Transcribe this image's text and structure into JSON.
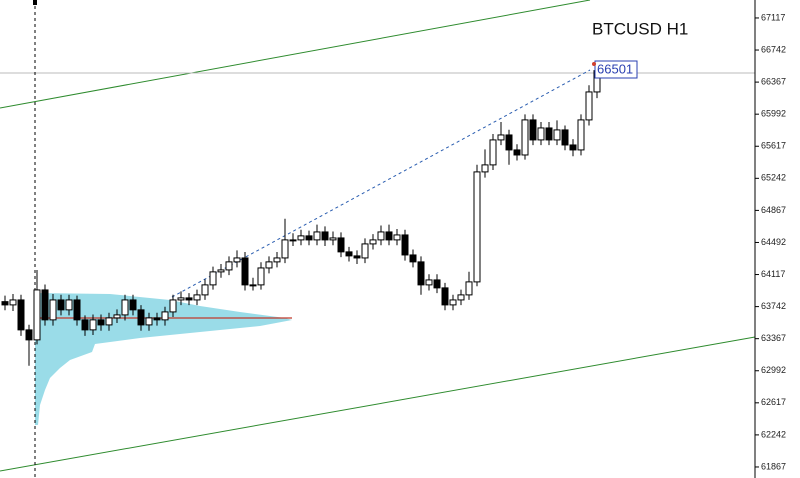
{
  "chart_data": {
    "type": "candlestick",
    "title": "BTCUSD H1",
    "open": [
      63800,
      63762,
      63820,
      63470,
      63353,
      63937,
      63587,
      63820,
      63704,
      63820,
      63587,
      63470,
      63587,
      63528,
      63610,
      63645,
      63820,
      63704,
      63528,
      63610,
      63587,
      63680,
      63820,
      63844,
      63820,
      63879,
      63996,
      64148,
      64171,
      64265,
      64311,
      63996,
      63996,
      64194,
      64265,
      64311,
      64522,
      64522,
      64569,
      64522,
      64615,
      64522,
      64545,
      64382,
      64335,
      64311,
      64475,
      64522,
      64615,
      64522,
      64580,
      64346,
      64265,
      63996,
      64054,
      63961,
      63762,
      63820,
      63879,
      64031,
      65317,
      65399,
      65691,
      65749,
      65574,
      65515,
      65925,
      65691,
      65831,
      65691,
      65808,
      65632,
      65574,
      65925,
      66252
    ],
    "high": [
      63870,
      63890,
      63880,
      63530,
      64170,
      64000,
      63890,
      63880,
      63880,
      63870,
      63640,
      63650,
      63650,
      63670,
      63710,
      63880,
      63880,
      63760,
      63670,
      63670,
      63740,
      63880,
      63920,
      63900,
      63940,
      64060,
      64210,
      64240,
      64330,
      64400,
      64380,
      64080,
      64260,
      64330,
      64380,
      64770,
      64600,
      64640,
      64630,
      64700,
      64680,
      64620,
      64610,
      64440,
      64400,
      64540,
      64590,
      64690,
      64700,
      64650,
      64640,
      64410,
      64330,
      64120,
      64120,
      64020,
      63880,
      63940,
      64150,
      65400,
      65580,
      65760,
      65900,
      65810,
      65640,
      65990,
      65990,
      65900,
      65900,
      65920,
      65860,
      65700,
      65990,
      66330,
      66600
    ],
    "low": [
      63700,
      63690,
      63400,
      63050,
      63300,
      63520,
      63520,
      63640,
      63640,
      63520,
      63400,
      63410,
      63460,
      63460,
      63550,
      63580,
      63640,
      63460,
      63460,
      63520,
      63520,
      63620,
      63760,
      63760,
      63760,
      63820,
      63940,
      64080,
      64110,
      64200,
      63930,
      63930,
      63940,
      64130,
      64200,
      64250,
      64450,
      64460,
      64460,
      64460,
      64450,
      64460,
      64320,
      64270,
      64240,
      64250,
      64410,
      64460,
      64460,
      64460,
      64280,
      64200,
      63880,
      63930,
      63900,
      63700,
      63700,
      63760,
      63820,
      63980,
      65250,
      65340,
      65630,
      65400,
      65450,
      65460,
      65630,
      65630,
      65630,
      65630,
      65570,
      65500,
      65510,
      65860,
      66180
    ],
    "close": [
      63762,
      63820,
      63470,
      63353,
      63937,
      63587,
      63820,
      63704,
      63820,
      63587,
      63470,
      63587,
      63528,
      63610,
      63645,
      63820,
      63704,
      63528,
      63610,
      63587,
      63680,
      63820,
      63844,
      63820,
      63879,
      63996,
      64148,
      64171,
      64265,
      64311,
      63996,
      63996,
      64194,
      64265,
      64311,
      64522,
      64522,
      64569,
      64522,
      64615,
      64522,
      64545,
      64382,
      64335,
      64311,
      64475,
      64522,
      64615,
      64522,
      64580,
      64346,
      64265,
      63996,
      64054,
      63961,
      63762,
      63820,
      63879,
      64031,
      65317,
      65399,
      65691,
      65749,
      65574,
      65515,
      65925,
      65691,
      65831,
      65691,
      65808,
      65632,
      65574,
      65925,
      66252,
      66501
    ],
    "up_color": "#ffffff",
    "down_color": "#000000",
    "wick_color": "#000000",
    "ylim": [
      61738,
      67327
    ],
    "yticks": [
      61867,
      62242,
      62617,
      62992,
      63367,
      63742,
      64117,
      64492,
      64867,
      65242,
      65617,
      65992,
      66367,
      66742,
      67117
    ]
  }
}
